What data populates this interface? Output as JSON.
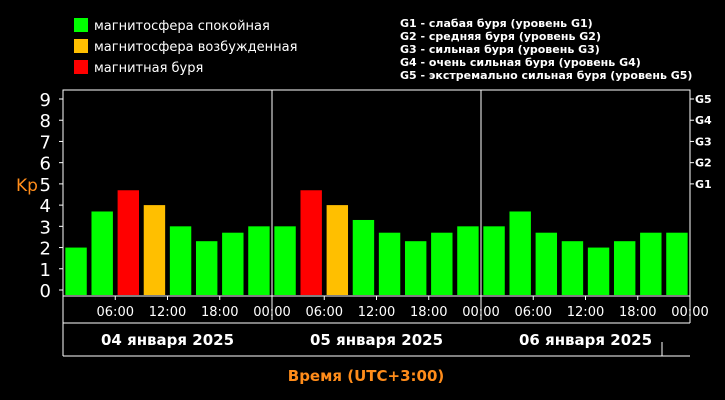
{
  "legend": {
    "items": [
      {
        "label": "магнитосфера спокойная",
        "color": "#00ff00"
      },
      {
        "label": "магнитосфера возбужденная",
        "color": "#ffbf00"
      },
      {
        "label": "магнитная буря",
        "color": "#ff0000"
      }
    ],
    "storm_levels": [
      "G1 - слабая буря (уровень G1)",
      "G2 - средняя буря (уровень G2)",
      "G3 - сильная буря (уровень G3)",
      "G4 - очень сильная буря (уровень G4)",
      "G5 - экстремально сильная буря (уровень G5)"
    ]
  },
  "colors": {
    "quiet": "#00ff00",
    "active": "#ffbf00",
    "storm": "#ff0000",
    "axis_title": "#ff8c1a",
    "grid": "#ffffff",
    "background": "#000000"
  },
  "chart_data": {
    "type": "bar",
    "ylabel": "Kp",
    "xlabel": "Время (UTC+3:00)",
    "ylim": [
      0,
      9
    ],
    "yticks": [
      "0",
      "1",
      "2",
      "3",
      "4",
      "5",
      "6",
      "7",
      "8",
      "9"
    ],
    "g_levels": [
      {
        "label": "G1",
        "kp": 5
      },
      {
        "label": "G2",
        "kp": 6
      },
      {
        "label": "G3",
        "kp": 7
      },
      {
        "label": "G4",
        "kp": 8
      },
      {
        "label": "G5",
        "kp": 9
      }
    ],
    "x_tick_labels": [
      "06:00",
      "12:00",
      "18:00",
      "00:00",
      "06:00",
      "12:00",
      "18:00",
      "00:00",
      "06:00",
      "12:00",
      "18:00",
      "00:00"
    ],
    "days": [
      "04 января 2025",
      "05 января 2025",
      "06 января 2025"
    ],
    "values": [
      2.0,
      3.7,
      4.7,
      4.0,
      3.0,
      2.3,
      2.7,
      3.0,
      3.0,
      4.7,
      4.0,
      3.3,
      2.7,
      2.3,
      2.7,
      3.0,
      3.0,
      3.7,
      2.7,
      2.3,
      2.0,
      2.3,
      2.7,
      2.7
    ],
    "levels": [
      "quiet",
      "quiet",
      "storm",
      "active",
      "quiet",
      "quiet",
      "quiet",
      "quiet",
      "quiet",
      "storm",
      "active",
      "quiet",
      "quiet",
      "quiet",
      "quiet",
      "quiet",
      "quiet",
      "quiet",
      "quiet",
      "quiet",
      "quiet",
      "quiet",
      "quiet",
      "quiet"
    ]
  }
}
